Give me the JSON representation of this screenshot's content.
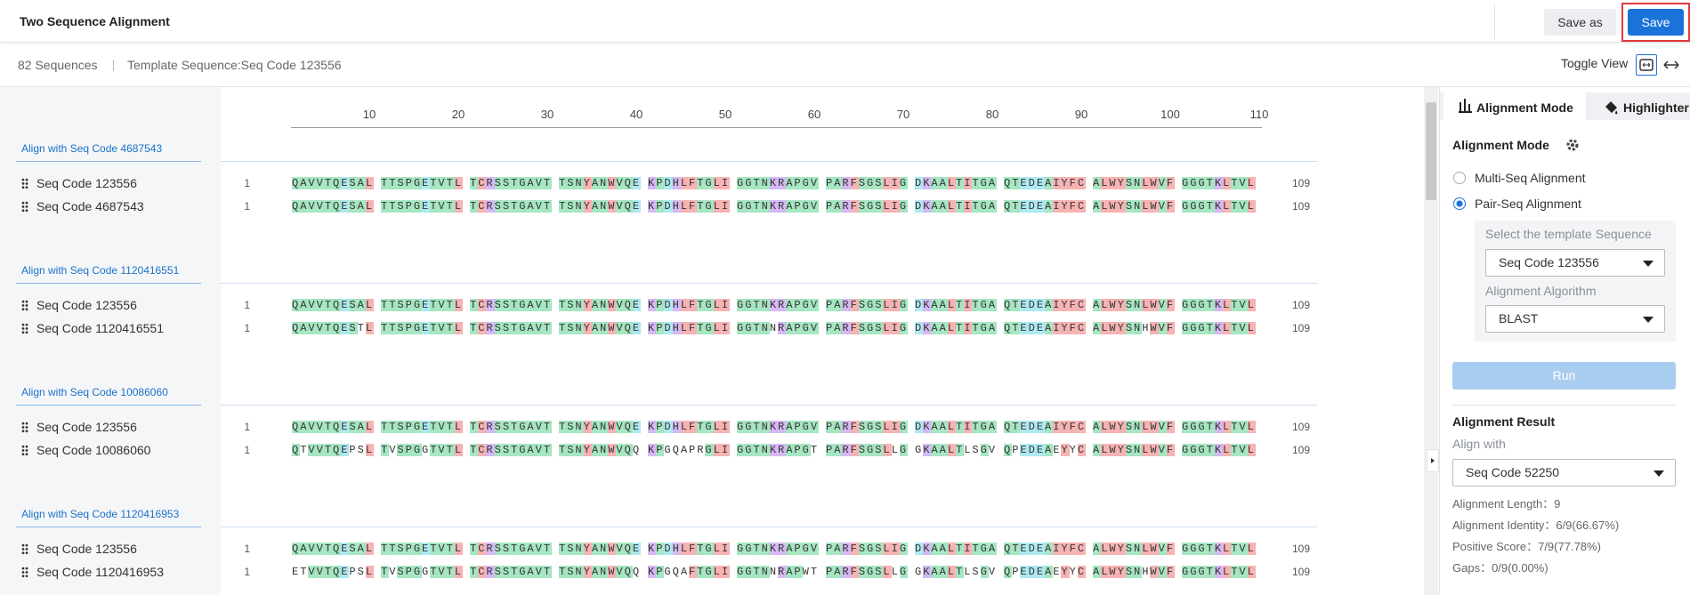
{
  "header": {
    "title": "Two Sequence Alignment",
    "save_as": "Save as",
    "save": "Save"
  },
  "toolbar": {
    "count": "82 Sequences",
    "template": "Template Sequence:Seq Code 123556",
    "toggle": "Toggle View"
  },
  "ruler": {
    "ticks": [
      10,
      20,
      30,
      40,
      50,
      60,
      70,
      80,
      90,
      100,
      110
    ]
  },
  "groups": [
    {
      "title": "Align with Seq Code 4687543",
      "rows": [
        {
          "name": "Seq Code 123556",
          "start": 1,
          "end": 109,
          "blocks": [
            "QAVVTQESAL",
            "TTSPGETVTL",
            "TCRSSTGAVT",
            "TSNYANWVQE",
            "KPDHLFTGLI",
            "GGTNKRAPGV",
            "PARFSGSLIG",
            "DKAALTITGA",
            "QTEDEAIYFC",
            "ALWYSNLWVF",
            "GGGTKLTVL"
          ]
        },
        {
          "name": "Seq Code 4687543",
          "start": 1,
          "end": 109,
          "blocks": [
            "QAVVTQESAL",
            "TTSPGETVTL",
            "TCRSSTGAVT",
            "TSNYANWVQE",
            "KPDHLFTGLI",
            "GGTNKRAPGV",
            "PARFSGSLIG",
            "DKAALTITGA",
            "QTEDEAIYFC",
            "ALWYSNLWVF",
            "GGGTKLTVL"
          ]
        }
      ]
    },
    {
      "title": "Align with Seq Code 1120416551",
      "rows": [
        {
          "name": "Seq Code 123556",
          "start": 1,
          "end": 109,
          "blocks": [
            "QAVVTQESAL",
            "TTSPGETVTL",
            "TCRSSTGAVT",
            "TSNYANWVQE",
            "KPDHLFTGLI",
            "GGTNKRAPGV",
            "PARFSGSLIG",
            "DKAALTITGA",
            "QTEDEAIYFC",
            "ALWYSNLWVF",
            "GGGTKLTVL"
          ]
        },
        {
          "name": "Seq Code 1120416551",
          "start": 1,
          "end": 109,
          "blocks": [
            "QAVVTQESTL",
            "TTSPGETVTL",
            "TCRSSTGAVT",
            "TSNYANWVQE",
            "KPDHLFTGLI",
            "GGTNNRAPGV",
            "PARFSGSLIG",
            "DKAALTITGA",
            "QTEDEAIYFC",
            "ALWYSNHWVF",
            "GGGTKLTVL"
          ]
        }
      ]
    },
    {
      "title": "Align with Seq Code 10086060",
      "rows": [
        {
          "name": "Seq Code 123556",
          "start": 1,
          "end": 109,
          "blocks": [
            "QAVVTQESAL",
            "TTSPGETVTL",
            "TCRSSTGAVT",
            "TSNYANWVQE",
            "KPDHLFTGLI",
            "GGTNKRAPGV",
            "PARFSGSLIG",
            "DKAALTITGA",
            "QTEDEAIYFC",
            "ALWYSNLWVF",
            "GGGTKLTVL"
          ]
        },
        {
          "name": "Seq Code 10086060",
          "start": 1,
          "end": 109,
          "blocks": [
            "QTVVTQEPSL",
            "TVSPGGTVTL",
            "TCRSSTGAVT",
            "TSNYANWVQQ",
            "KPGQAPRGLI",
            "GGTNKRAPGT",
            "PARFSGSLLG",
            "GKAALTLSGV",
            "QPEDEAEYYC",
            "ALWYSNLWVF",
            "GGGTKLTVL"
          ]
        }
      ]
    },
    {
      "title": "Align with Seq Code 1120416953",
      "rows": [
        {
          "name": "Seq Code 123556",
          "start": 1,
          "end": 109,
          "blocks": [
            "QAVVTQESAL",
            "TTSPGETVTL",
            "TCRSSTGAVT",
            "TSNYANWVQE",
            "KPDHLFTGLI",
            "GGTNKRAPGV",
            "PARFSGSLIG",
            "DKAALTITGA",
            "QTEDEAIYFC",
            "ALWYSNLWVF",
            "GGGTKLTVL"
          ]
        },
        {
          "name": "Seq Code 1120416953",
          "start": 1,
          "end": 109,
          "blocks": [
            "ETVVTQEPSL",
            "TVSPGGTVTL",
            "TCRSSTGAVT",
            "TSNYANWVQQ",
            "KPGQAFTGLI",
            "GGTNNRAPWT",
            "PARFSGSLLG",
            "GKAALTLSGV",
            "QPEDEAEYYC",
            "ALWYSNHWVF",
            "GGGTKLTVL"
          ]
        }
      ]
    }
  ],
  "panel": {
    "tabs": [
      "Alignment Mode",
      "Highlighter"
    ],
    "mode_heading": "Alignment Mode",
    "modes": [
      "Multi-Seq Alignment",
      "Pair-Seq Alignment"
    ],
    "template_label": "Select the template Sequence",
    "template_value": "Seq Code 123556",
    "algorithm_label": "Alignment Algorithm",
    "algorithm_value": "BLAST",
    "run": "Run",
    "result_heading": "Alignment Result",
    "align_with_label": "Align with",
    "align_with_value": "Seq Code 52250",
    "results": [
      "Alignment Length：9",
      "Alignment Identity：6/9(66.67%)",
      "Positive Score：7/9(77.78%)",
      "Gaps：0/9(0.00%)"
    ]
  }
}
